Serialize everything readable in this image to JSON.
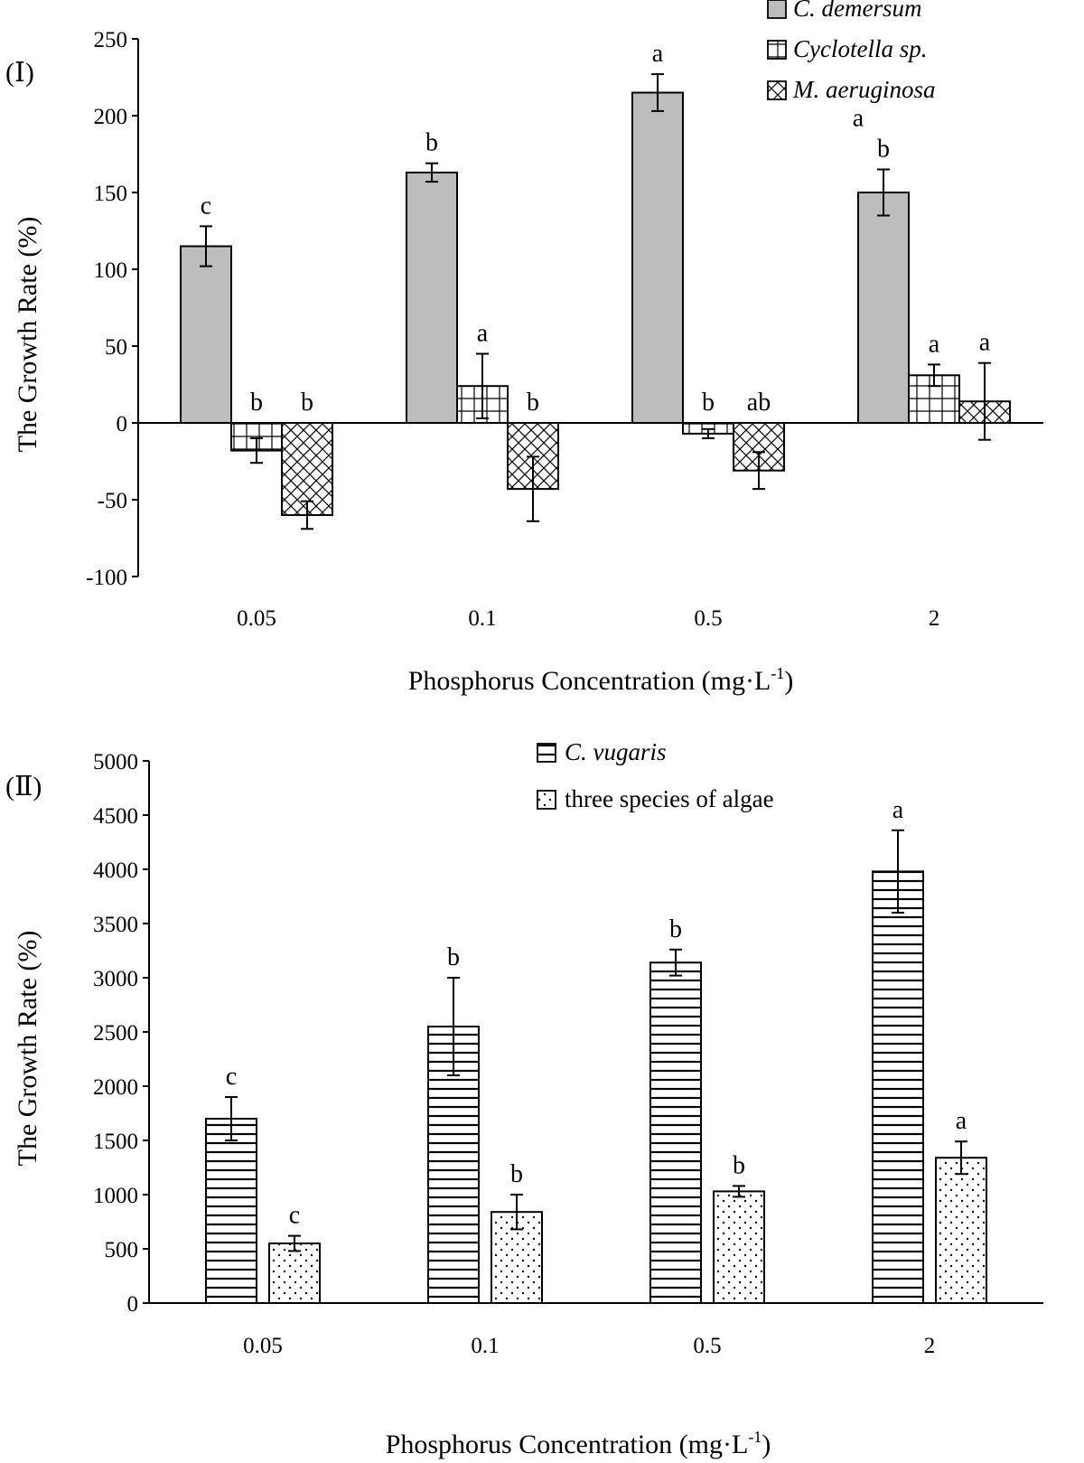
{
  "chart_data": [
    {
      "type": "bar",
      "panel_label": "(Ⅰ)",
      "categories": [
        "0.05",
        "0.1",
        "0.5",
        "2"
      ],
      "xlabel": "Phosphorus Concentration (mg·L",
      "xlabel_sup": "-1",
      "xlabel_end": ")",
      "ylabel": "The Growth Rate (%)",
      "ylim": [
        -100,
        250
      ],
      "yticks": [
        -100,
        -50,
        0,
        50,
        100,
        150,
        200,
        250
      ],
      "legend_position": "top-right",
      "series": [
        {
          "name": "C. demersum",
          "pattern": "gray",
          "values": [
            115,
            163,
            215,
            150
          ],
          "errors": [
            13,
            6,
            12,
            15
          ],
          "labels": [
            "c",
            "b",
            "a",
            "b"
          ],
          "extra_labels": [
            "",
            "",
            "",
            "a"
          ]
        },
        {
          "name": "Cyclotella sp.",
          "pattern": "grid",
          "values": [
            -18,
            24,
            -7,
            31
          ],
          "errors": [
            8,
            21,
            3,
            7
          ],
          "labels": [
            "b",
            "a",
            "b",
            "a"
          ]
        },
        {
          "name": "M. aeruginosa",
          "pattern": "crosshatch",
          "values": [
            -60,
            -43,
            -31,
            14
          ],
          "errors": [
            9,
            21,
            12,
            25
          ],
          "labels": [
            "b",
            "b",
            "ab",
            "a"
          ]
        }
      ]
    },
    {
      "type": "bar",
      "panel_label": "(Ⅱ)",
      "categories": [
        "0.05",
        "0.1",
        "0.5",
        "2"
      ],
      "xlabel": "Phosphorus Concentration (mg·L",
      "xlabel_sup": "-1",
      "xlabel_end": ")",
      "ylabel": "The Growth Rate (%)",
      "ylim": [
        0,
        5000
      ],
      "yticks": [
        0,
        500,
        1000,
        1500,
        2000,
        2500,
        3000,
        3500,
        4000,
        4500,
        5000
      ],
      "legend_position": "top-center",
      "series": [
        {
          "name": "C. vugaris",
          "pattern": "hstripes",
          "values": [
            1700,
            2550,
            3140,
            3980
          ],
          "errors": [
            200,
            450,
            120,
            380
          ],
          "labels": [
            "c",
            "b",
            "b",
            "a"
          ]
        },
        {
          "name": "three species of algae",
          "pattern": "dots",
          "values": [
            550,
            840,
            1030,
            1340
          ],
          "errors": [
            70,
            160,
            50,
            150
          ],
          "labels": [
            "c",
            "b",
            "b",
            "a"
          ]
        }
      ]
    }
  ]
}
